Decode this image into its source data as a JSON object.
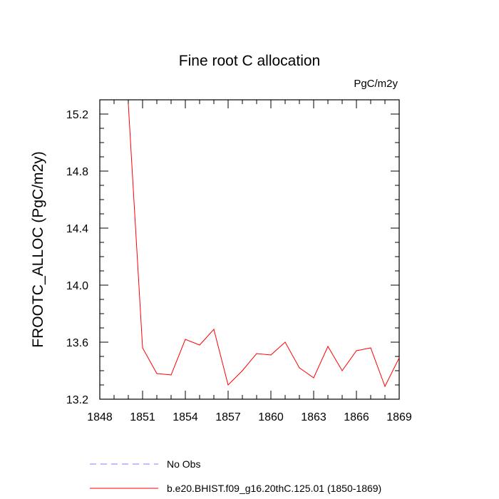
{
  "chart_data": {
    "type": "line",
    "title": "Fine root C allocation",
    "units": "PgC/m2y",
    "xlabel": "",
    "ylabel": "FROOTC_ALLOC  (PgC/m2y)",
    "xlim": [
      1848,
      1869
    ],
    "ylim": [
      13.2,
      15.3
    ],
    "xticks": [
      1848,
      1851,
      1854,
      1857,
      1860,
      1863,
      1866,
      1869
    ],
    "xtick_labels": [
      "1848",
      "1851",
      "1854",
      "1857",
      "1860",
      "1863",
      "1866",
      "1869"
    ],
    "yticks": [
      13.2,
      13.6,
      14.0,
      14.4,
      14.8,
      15.2
    ],
    "ytick_labels": [
      "13.2",
      "13.6",
      "14.0",
      "14.4",
      "14.8",
      "15.2"
    ],
    "grid": false,
    "legend_position": "bottom",
    "legend": [
      {
        "label": "No Obs",
        "color": "#7f7fff",
        "style": "dashed"
      },
      {
        "label": "b.e20.BHIST.f09_g16.20thC.125.01 (1850-1869)",
        "color": "#ff0000",
        "style": "solid"
      }
    ],
    "series": [
      {
        "name": "b.e20.BHIST.f09_g16.20thC.125.01 (1850-1869)",
        "color": "#ff0000",
        "x": [
          1850,
          1851,
          1852,
          1853,
          1854,
          1855,
          1856,
          1857,
          1858,
          1859,
          1860,
          1861,
          1862,
          1863,
          1864,
          1865,
          1866,
          1867,
          1868,
          1869
        ],
        "y": [
          15.27,
          13.56,
          13.38,
          13.37,
          13.62,
          13.58,
          13.69,
          13.3,
          13.4,
          13.52,
          13.51,
          13.6,
          13.42,
          13.35,
          13.57,
          13.4,
          13.54,
          13.56,
          13.29,
          13.49
        ]
      }
    ]
  }
}
